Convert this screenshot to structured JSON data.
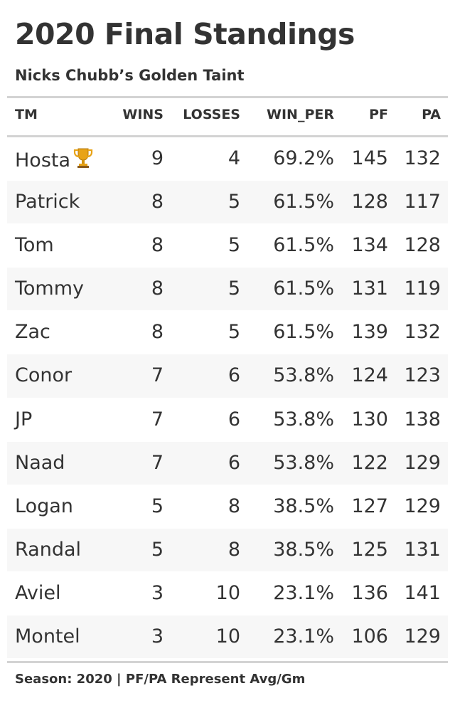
{
  "title": "2020 Final Standings",
  "subtitle": "Nicks Chubb’s Golden Taint",
  "columns": {
    "tm": "TM",
    "wins": "WINS",
    "losses": "LOSSES",
    "win_per": "WIN_PER",
    "pf": "PF",
    "pa": "PA"
  },
  "rows": [
    {
      "tm": "Hosta",
      "wins": "9",
      "losses": "4",
      "win_per": "69.2%",
      "pf": "145",
      "pa": "132"
    },
    {
      "tm": "Patrick",
      "wins": "8",
      "losses": "5",
      "win_per": "61.5%",
      "pf": "128",
      "pa": "117"
    },
    {
      "tm": "Tom",
      "wins": "8",
      "losses": "5",
      "win_per": "61.5%",
      "pf": "134",
      "pa": "128"
    },
    {
      "tm": "Tommy",
      "wins": "8",
      "losses": "5",
      "win_per": "61.5%",
      "pf": "131",
      "pa": "119"
    },
    {
      "tm": "Zac",
      "wins": "8",
      "losses": "5",
      "win_per": "61.5%",
      "pf": "139",
      "pa": "132"
    },
    {
      "tm": "Conor",
      "wins": "7",
      "losses": "6",
      "win_per": "53.8%",
      "pf": "124",
      "pa": "123"
    },
    {
      "tm": "JP",
      "wins": "7",
      "losses": "6",
      "win_per": "53.8%",
      "pf": "130",
      "pa": "138"
    },
    {
      "tm": "Naad",
      "wins": "7",
      "losses": "6",
      "win_per": "53.8%",
      "pf": "122",
      "pa": "129"
    },
    {
      "tm": "Logan",
      "wins": "5",
      "losses": "8",
      "win_per": "38.5%",
      "pf": "127",
      "pa": "129"
    },
    {
      "tm": "Randal",
      "wins": "5",
      "losses": "8",
      "win_per": "38.5%",
      "pf": "125",
      "pa": "131"
    },
    {
      "tm": "Aviel",
      "wins": "3",
      "losses": "10",
      "win_per": "23.1%",
      "pf": "136",
      "pa": "141"
    },
    {
      "tm": "Montel",
      "wins": "3",
      "losses": "10",
      "win_per": "23.1%",
      "pf": "106",
      "pa": "129"
    }
  ],
  "champion_icon": "trophy-icon",
  "colors": {
    "text": "#333333",
    "rule": "#d3d3d3",
    "row_alt": "#f7f7f7",
    "trophy": "#e8a317"
  },
  "footer": "Season: 2020 | PF/PA Represent Avg/Gm"
}
